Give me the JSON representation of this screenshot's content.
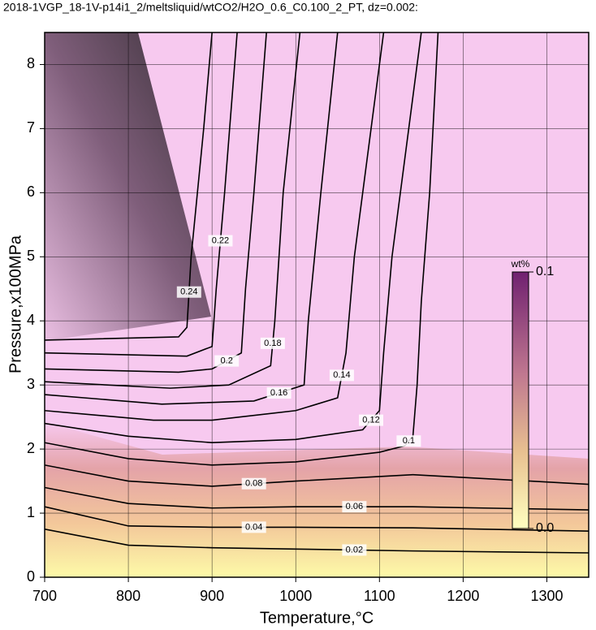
{
  "chart_data": {
    "type": "contour",
    "title": "2018-1VGP_18-1V-p14i1_2/meltsliquid/wtCO2/H2O_0.6_C0.100_2_PT, dz=0.002:",
    "x_label": "Temperature,°C",
    "y_label": "Pressure,x100MPa",
    "xlim": [
      700,
      1350
    ],
    "ylim": [
      0,
      8.5
    ],
    "xticks": [
      700,
      800,
      900,
      1000,
      1100,
      1200,
      1300
    ],
    "yticks": [
      0,
      1,
      2,
      3,
      4,
      5,
      6,
      7,
      8
    ],
    "grid": true,
    "line_color": "#000000",
    "contours": [
      {
        "level": 0.02,
        "x": [
          700,
          800,
          900,
          1000,
          1140,
          1350
        ],
        "y": [
          0.75,
          0.5,
          0.46,
          0.44,
          0.41,
          0.38
        ]
      },
      {
        "level": 0.04,
        "x": [
          700,
          800,
          900,
          1000,
          1140,
          1350
        ],
        "y": [
          1.1,
          0.8,
          0.78,
          0.78,
          0.77,
          0.72
        ]
      },
      {
        "level": 0.06,
        "x": [
          700,
          800,
          900,
          1000,
          1140,
          1350
        ],
        "y": [
          1.4,
          1.15,
          1.08,
          1.1,
          1.1,
          1.05
        ]
      },
      {
        "level": 0.08,
        "x": [
          700,
          800,
          900,
          1000,
          1140,
          1350
        ],
        "y": [
          1.75,
          1.5,
          1.42,
          1.5,
          1.6,
          1.45
        ]
      },
      {
        "level": 0.1,
        "x": [
          700,
          800,
          900,
          1000,
          1100,
          1130,
          1140,
          1145,
          1150,
          1160,
          1170
        ],
        "y": [
          2.1,
          1.85,
          1.75,
          1.8,
          1.95,
          2.05,
          2.2,
          3,
          4.3,
          6,
          8.5
        ]
      },
      {
        "level": 0.12,
        "x": [
          700,
          800,
          900,
          1000,
          1080,
          1100,
          1105,
          1115,
          1130,
          1150
        ],
        "y": [
          2.4,
          2.2,
          2.1,
          2.15,
          2.3,
          2.6,
          3.5,
          5,
          6.5,
          8.5
        ]
      },
      {
        "level": 0.14,
        "x": [
          700,
          830,
          900,
          1000,
          1050,
          1060,
          1070,
          1090,
          1105
        ],
        "y": [
          2.6,
          2.45,
          2.45,
          2.6,
          2.8,
          3.5,
          5,
          7,
          8.5
        ]
      },
      {
        "level": 0.16,
        "x": [
          700,
          840,
          950,
          1010,
          1015,
          1030,
          1050
        ],
        "y": [
          2.85,
          2.7,
          2.75,
          3.0,
          4,
          6,
          8.5
        ]
      },
      {
        "level": 0.18,
        "x": [
          700,
          850,
          920,
          970,
          975,
          985,
          1005
        ],
        "y": [
          3.05,
          2.95,
          3.0,
          3.3,
          4,
          6,
          8.5
        ]
      },
      {
        "level": 0.2,
        "x": [
          700,
          860,
          900,
          935,
          940,
          950,
          965
        ],
        "y": [
          3.25,
          3.2,
          3.25,
          3.5,
          4.5,
          6,
          8.5
        ]
      },
      {
        "level": 0.22,
        "x": [
          700,
          870,
          900,
          905,
          915,
          930
        ],
        "y": [
          3.5,
          3.45,
          3.6,
          4.5,
          6,
          8.5
        ]
      },
      {
        "level": 0.24,
        "x": [
          700,
          860,
          870,
          875,
          890,
          900
        ],
        "y": [
          3.7,
          3.75,
          3.9,
          5,
          7,
          8.5
        ]
      }
    ],
    "colorbar": {
      "label": "wt%",
      "lim": [
        0,
        0.1
      ],
      "ticks": [
        {
          "value": 0,
          "label": "0.0"
        },
        0.1
      ]
    }
  }
}
